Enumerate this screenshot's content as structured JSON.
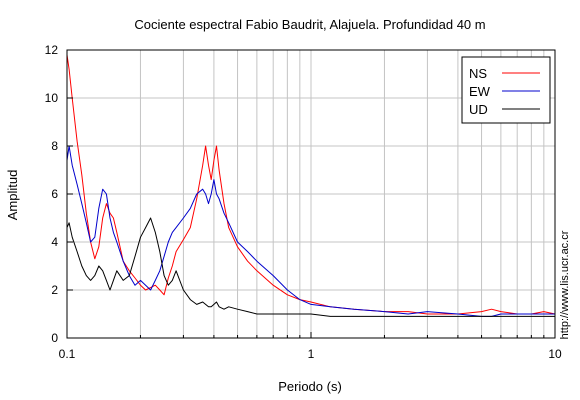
{
  "chart_data": {
    "type": "line",
    "title": "Cociente espectral Fabio Baudrit, Alajuela. Profundidad 40 m",
    "xlabel": "Periodo (s)",
    "ylabel": "Amplitud",
    "x_scale": "log",
    "xlim": [
      0.1,
      10
    ],
    "ylim": [
      0,
      12
    ],
    "x_ticks": [
      0.1,
      1,
      10
    ],
    "x_tick_labels": [
      "0.1",
      "1",
      "10"
    ],
    "y_ticks": [
      0,
      2,
      4,
      6,
      8,
      10,
      12
    ],
    "y_tick_labels": [
      "0",
      "2",
      "4",
      "6",
      "8",
      "10",
      "12"
    ],
    "grid": true,
    "legend_position": "top-right",
    "series": [
      {
        "name": "NS",
        "color": "#ff0000",
        "x": [
          0.1,
          0.102,
          0.105,
          0.11,
          0.115,
          0.12,
          0.125,
          0.13,
          0.135,
          0.14,
          0.145,
          0.15,
          0.155,
          0.16,
          0.17,
          0.18,
          0.19,
          0.2,
          0.21,
          0.22,
          0.23,
          0.24,
          0.25,
          0.26,
          0.27,
          0.28,
          0.3,
          0.32,
          0.34,
          0.36,
          0.37,
          0.38,
          0.39,
          0.4,
          0.41,
          0.42,
          0.44,
          0.46,
          0.5,
          0.55,
          0.6,
          0.7,
          0.8,
          0.9,
          1.0,
          1.2,
          1.5,
          2.0,
          2.5,
          3.0,
          4.0,
          5.0,
          5.5,
          6.0,
          7.0,
          8.0,
          9.0,
          10.0
        ],
        "y": [
          11.8,
          11.2,
          10.0,
          8.2,
          6.8,
          5.2,
          4.0,
          3.3,
          3.8,
          5.0,
          5.6,
          5.2,
          5.0,
          4.4,
          3.2,
          2.8,
          2.5,
          2.2,
          2.0,
          2.1,
          2.2,
          2.0,
          1.8,
          2.5,
          3.0,
          3.6,
          4.1,
          4.6,
          5.8,
          7.2,
          8.0,
          7.2,
          6.6,
          7.4,
          8.0,
          7.0,
          5.6,
          4.6,
          3.8,
          3.2,
          2.8,
          2.2,
          1.8,
          1.6,
          1.5,
          1.3,
          1.2,
          1.1,
          1.1,
          1.0,
          1.0,
          1.1,
          1.2,
          1.1,
          1.0,
          1.0,
          1.1,
          1.0
        ]
      },
      {
        "name": "EW",
        "color": "#0000cc",
        "x": [
          0.1,
          0.102,
          0.105,
          0.11,
          0.115,
          0.12,
          0.125,
          0.13,
          0.135,
          0.14,
          0.145,
          0.15,
          0.155,
          0.16,
          0.17,
          0.18,
          0.19,
          0.2,
          0.21,
          0.22,
          0.23,
          0.24,
          0.25,
          0.26,
          0.27,
          0.28,
          0.3,
          0.32,
          0.34,
          0.36,
          0.37,
          0.38,
          0.39,
          0.4,
          0.41,
          0.42,
          0.44,
          0.46,
          0.5,
          0.55,
          0.6,
          0.7,
          0.8,
          0.9,
          1.0,
          1.2,
          1.5,
          2.0,
          2.5,
          3.0,
          4.0,
          5.0,
          5.5,
          6.0,
          7.0,
          8.0,
          9.0,
          10.0
        ],
        "y": [
          7.4,
          8.0,
          7.2,
          6.4,
          5.6,
          4.8,
          4.0,
          4.2,
          5.4,
          6.2,
          6.0,
          5.0,
          4.4,
          4.0,
          3.2,
          2.6,
          2.2,
          2.4,
          2.2,
          2.0,
          2.4,
          2.8,
          3.4,
          4.0,
          4.4,
          4.6,
          5.0,
          5.4,
          6.0,
          6.2,
          6.0,
          5.6,
          6.0,
          6.6,
          6.0,
          5.8,
          5.2,
          4.8,
          4.0,
          3.6,
          3.2,
          2.6,
          2.0,
          1.6,
          1.4,
          1.3,
          1.2,
          1.1,
          1.0,
          1.1,
          1.0,
          0.9,
          0.9,
          1.0,
          1.0,
          1.0,
          1.0,
          1.0
        ]
      },
      {
        "name": "UD",
        "color": "#000000",
        "x": [
          0.1,
          0.102,
          0.105,
          0.11,
          0.115,
          0.12,
          0.125,
          0.13,
          0.135,
          0.14,
          0.145,
          0.15,
          0.155,
          0.16,
          0.17,
          0.18,
          0.19,
          0.2,
          0.21,
          0.22,
          0.23,
          0.24,
          0.25,
          0.26,
          0.27,
          0.28,
          0.3,
          0.32,
          0.34,
          0.36,
          0.37,
          0.38,
          0.39,
          0.4,
          0.41,
          0.42,
          0.44,
          0.46,
          0.5,
          0.55,
          0.6,
          0.7,
          0.8,
          0.9,
          1.0,
          1.2,
          1.5,
          2.0,
          2.5,
          3.0,
          4.0,
          5.0,
          5.5,
          6.0,
          7.0,
          8.0,
          9.0,
          10.0
        ],
        "y": [
          4.6,
          4.8,
          4.2,
          3.6,
          3.0,
          2.6,
          2.4,
          2.6,
          3.0,
          2.8,
          2.4,
          2.0,
          2.4,
          2.8,
          2.4,
          2.6,
          3.4,
          4.2,
          4.6,
          5.0,
          4.4,
          3.6,
          2.6,
          2.2,
          2.4,
          2.8,
          2.0,
          1.6,
          1.4,
          1.5,
          1.4,
          1.3,
          1.3,
          1.4,
          1.5,
          1.3,
          1.2,
          1.3,
          1.2,
          1.1,
          1.0,
          1.0,
          1.0,
          1.0,
          1.0,
          0.9,
          0.9,
          0.9,
          0.9,
          0.9,
          0.9,
          0.9,
          0.9,
          0.9,
          0.9,
          0.9,
          0.9,
          0.9
        ]
      }
    ],
    "side_text": "http://www.lis.ucr.ac.cr"
  }
}
